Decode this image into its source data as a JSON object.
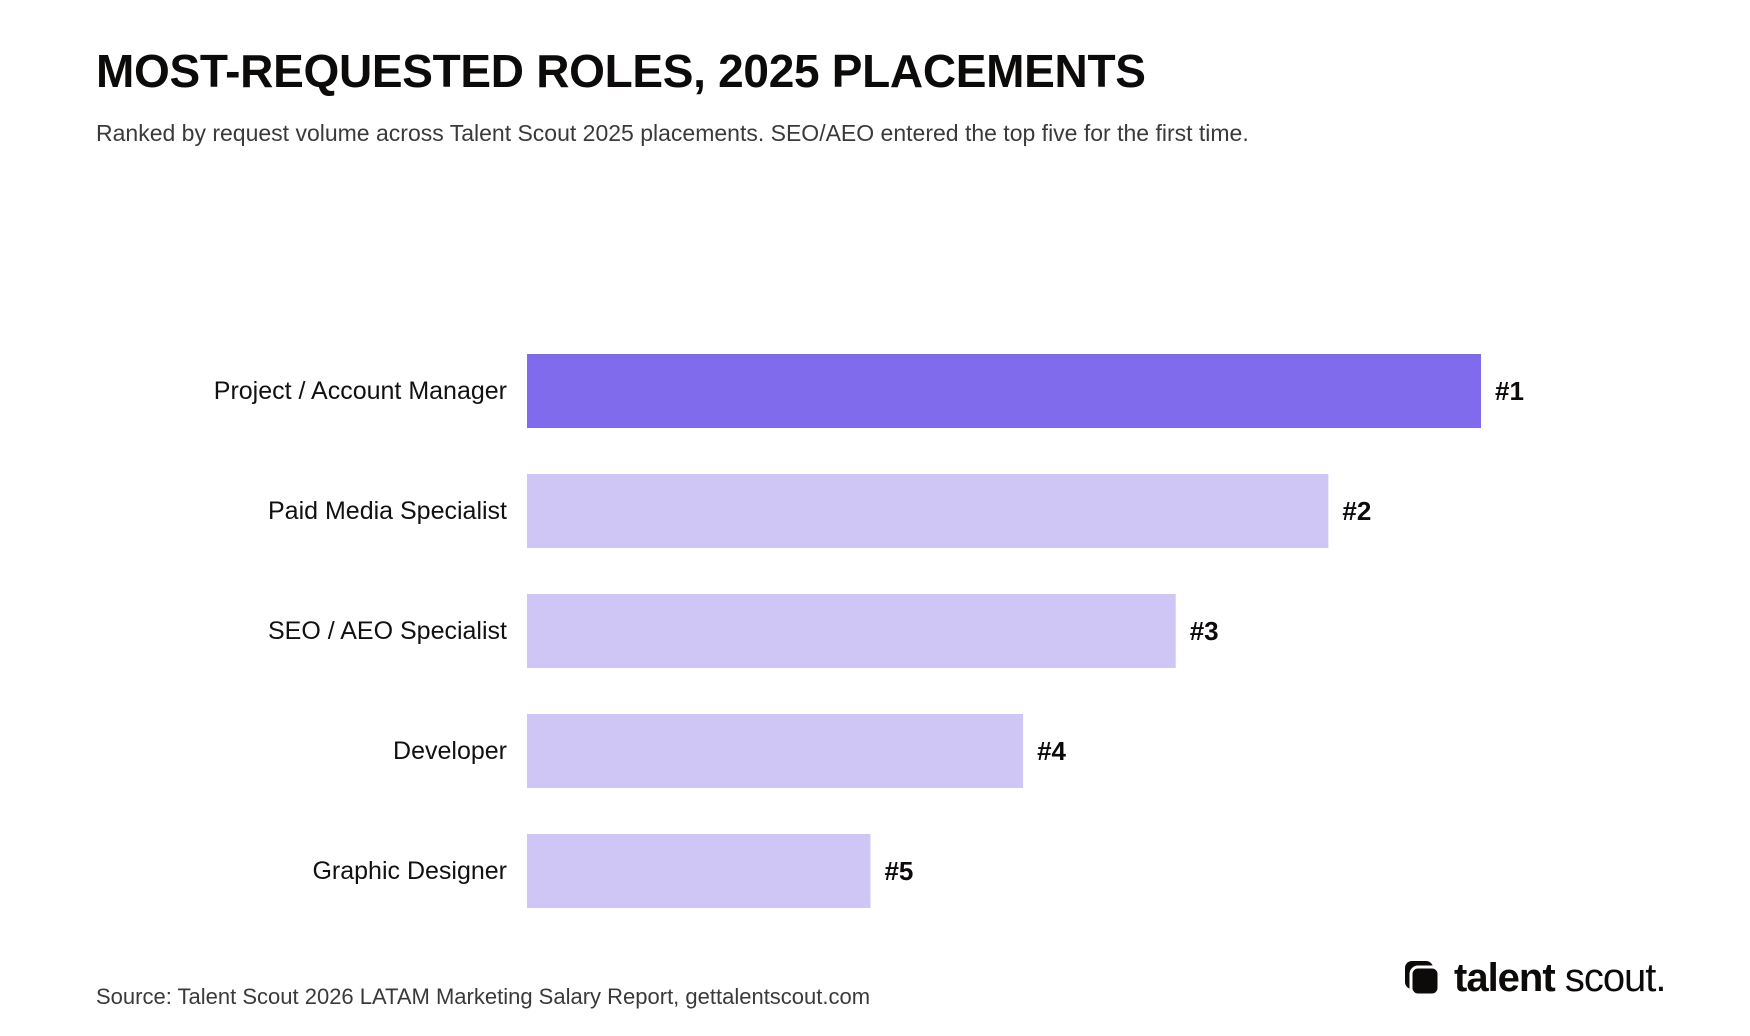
{
  "header": {
    "title": "MOST-REQUESTED ROLES, 2025 PLACEMENTS",
    "subtitle": "Ranked by request volume across Talent Scout 2025 placements. SEO/AEO entered the top five for the first time."
  },
  "chart_data": {
    "type": "bar",
    "orientation": "horizontal",
    "categories": [
      "Project / Account Manager",
      "Paid Media Specialist",
      "SEO / AEO Specialist",
      "Developer",
      "Graphic Designer"
    ],
    "values": [
      5,
      4.2,
      3.4,
      2.6,
      1.8
    ],
    "value_labels": [
      "#1",
      "#2",
      "#3",
      "#4",
      "#5"
    ],
    "xlim": [
      0,
      5
    ],
    "highlight_index": 0,
    "grid": false,
    "legend": "none"
  },
  "colors": {
    "highlight": "#7f6bec",
    "default": "#cfc6f6"
  },
  "footer": {
    "source": "Source: Talent Scout 2026 LATAM Marketing Salary Report, gettalentscout.com"
  },
  "logo": {
    "icon": "talent-scout-logo-icon",
    "word_bold": "talent",
    "word_light": "scout."
  }
}
